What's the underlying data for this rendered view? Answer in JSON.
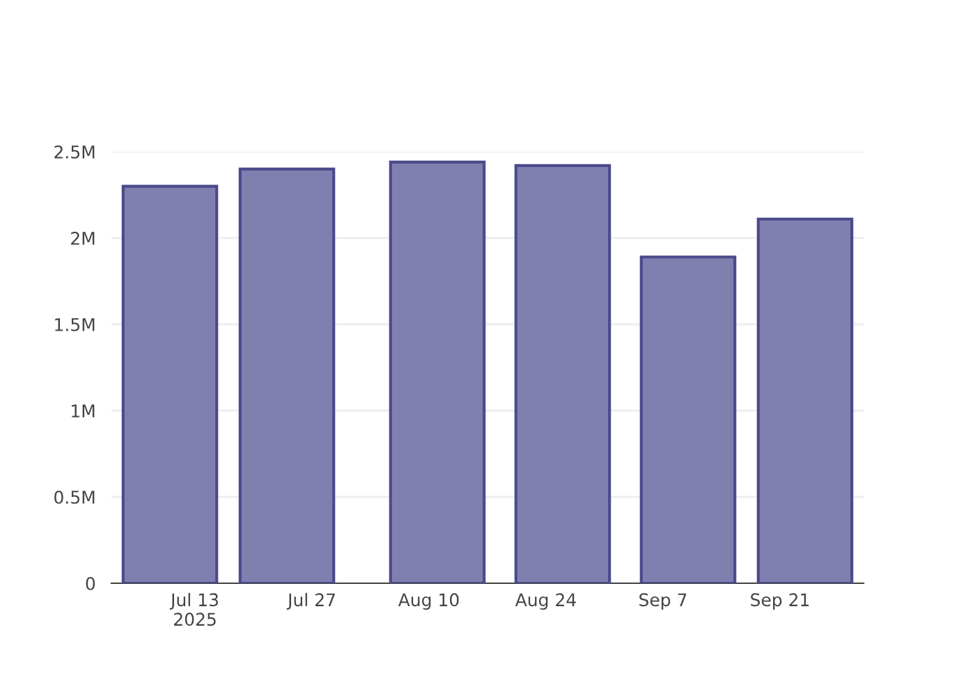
{
  "chart_data": {
    "type": "bar",
    "x": [
      "2025-07-10",
      "2025-07-24",
      "2025-08-11",
      "2025-08-26",
      "2025-09-10",
      "2025-09-24"
    ],
    "values": [
      2300000,
      2400000,
      2440000,
      2420000,
      1890000,
      2110000
    ],
    "color": "#8080b0",
    "xlim": [
      "2025-07-03",
      "2025-10-01"
    ],
    "xticks": [
      {
        "value": "2025-07-13",
        "label": "Jul 13\n2025"
      },
      {
        "value": "2025-07-27",
        "label": "Jul 27"
      },
      {
        "value": "2025-08-10",
        "label": "Aug 10"
      },
      {
        "value": "2025-08-24",
        "label": "Aug 24"
      },
      {
        "value": "2025-09-07",
        "label": "Sep 7"
      },
      {
        "value": "2025-09-21",
        "label": "Sep 21"
      }
    ],
    "ylim": [
      0,
      2500000
    ],
    "yticks": [
      {
        "value": 0,
        "label": "0"
      },
      {
        "value": 500000,
        "label": "0.5M"
      },
      {
        "value": 1000000,
        "label": "1M"
      },
      {
        "value": 1500000,
        "label": "1.5M"
      },
      {
        "value": 2000000,
        "label": "2M"
      },
      {
        "value": 2500000,
        "label": "2.5M"
      }
    ],
    "grid": "y"
  }
}
